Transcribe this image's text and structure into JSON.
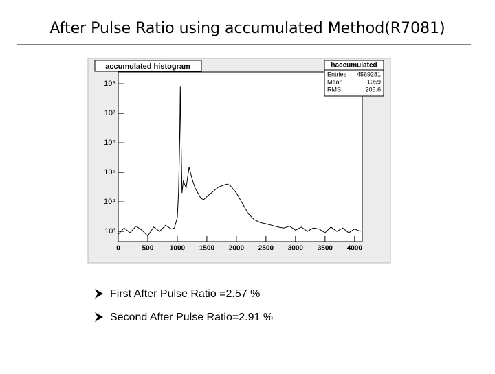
{
  "slide": {
    "title": "After Pulse Ratio using accumulated Method(R7081)",
    "bullets": [
      "First After Pulse Ratio =2.57 %",
      "Second After Pulse Ratio=2.91 %"
    ]
  },
  "chart_data": {
    "type": "line",
    "title": "accumulated histogram",
    "stats": {
      "title": "haccumulated",
      "rows": [
        {
          "label": "Entries",
          "value": 4569281
        },
        {
          "label": "Mean",
          "value": 1059
        },
        {
          "label": "RMS",
          "value": 205.6
        }
      ]
    },
    "x": [
      0,
      100,
      200,
      300,
      400,
      500,
      600,
      700,
      800,
      900,
      950,
      1000,
      1020,
      1040,
      1050,
      1060,
      1080,
      1100,
      1150,
      1180,
      1200,
      1250,
      1300,
      1350,
      1400,
      1450,
      1500,
      1600,
      1700,
      1800,
      1850,
      1900,
      2000,
      2100,
      2200,
      2300,
      2400,
      2500,
      2600,
      2700,
      2800,
      2900,
      3000,
      3100,
      3200,
      3300,
      3400,
      3500,
      3600,
      3700,
      3800,
      3900,
      4000,
      4100
    ],
    "values": [
      800,
      1300,
      900,
      1500,
      1100,
      700,
      1400,
      1000,
      1600,
      1200,
      1300,
      3000,
      20000,
      1000000,
      80000000,
      3000000,
      20000,
      50000,
      30000,
      80000,
      150000,
      60000,
      30000,
      20000,
      13000,
      12000,
      15000,
      22000,
      32000,
      38000,
      40000,
      35000,
      20000,
      9000,
      4000,
      2500,
      2000,
      1800,
      1600,
      1400,
      1300,
      1500,
      1100,
      1400,
      1000,
      1300,
      1200,
      900,
      1400,
      1000,
      1300,
      900,
      1200,
      1000
    ],
    "color": "#000000",
    "xlim": [
      0,
      4130
    ],
    "xticks": [
      0,
      500,
      1000,
      1500,
      2000,
      2500,
      3000,
      3500,
      4000
    ],
    "ylim": [
      450,
      250000000
    ],
    "ylog": true,
    "yticks": [
      {
        "value": 1000,
        "label": "10³"
      },
      {
        "value": 10000,
        "label": "10⁴"
      },
      {
        "value": 100000,
        "label": "10⁵"
      },
      {
        "value": 1000000,
        "label": "10⁶"
      },
      {
        "value": 10000000,
        "label": "10⁷"
      },
      {
        "value": 100000000,
        "label": "10⁸"
      }
    ]
  }
}
